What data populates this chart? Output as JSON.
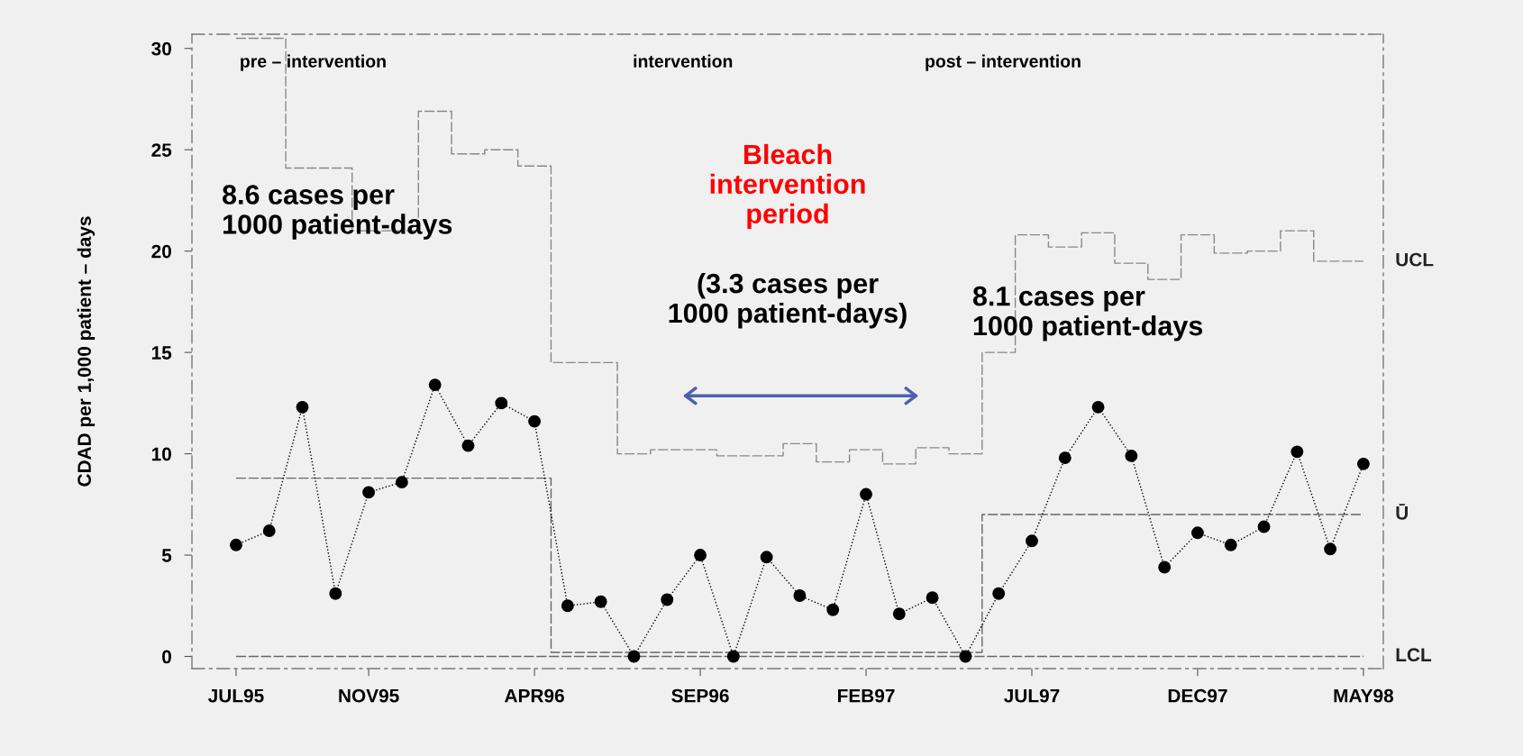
{
  "chart_data": {
    "type": "line",
    "ylabel": "CDAD per 1,000 patient – days",
    "categories": [
      "JUL95",
      null,
      null,
      null,
      "NOV95",
      null,
      null,
      null,
      null,
      "APR96",
      null,
      null,
      null,
      null,
      "SEP96",
      null,
      null,
      null,
      null,
      "FEB97",
      null,
      null,
      null,
      null,
      "JUL97",
      null,
      null,
      null,
      null,
      "DEC97",
      null,
      null,
      null,
      null,
      "MAY98"
    ],
    "ylim": [
      -0.6,
      30.7
    ],
    "yticks": [
      0,
      5,
      10,
      15,
      20,
      25,
      30
    ],
    "series": [
      {
        "color": "#000000",
        "marker": "circle",
        "line_style": "dotted",
        "values": [
          5.5,
          6.2,
          12.3,
          3.1,
          8.1,
          8.6,
          13.4,
          10.4,
          12.5,
          11.6,
          2.5,
          2.7,
          0,
          2.8,
          5.0,
          0,
          4.9,
          3.0,
          2.3,
          8.0,
          2.1,
          2.9,
          0,
          3.1,
          5.7,
          9.8,
          12.3,
          9.9,
          4.4,
          6.1,
          5.5,
          6.4,
          10.1,
          5.3,
          9.5
        ]
      },
      {
        "type": "step",
        "name": "UCL",
        "color": "#888888",
        "line_style": "dashed",
        "values": [
          30.5,
          30.5,
          24.1,
          24.1,
          21.0,
          21.0,
          26.9,
          24.8,
          25.0,
          24.2,
          14.5,
          14.5,
          10.0,
          10.2,
          10.2,
          9.9,
          9.9,
          10.5,
          9.6,
          10.2,
          9.5,
          10.3,
          10.0,
          15.0,
          20.8,
          20.2,
          20.9,
          19.4,
          18.6,
          20.8,
          19.9,
          20.0,
          21.0,
          19.5,
          19.5
        ]
      },
      {
        "type": "step",
        "name": "Ū",
        "color": "#666666",
        "line_style": "dashed",
        "values": [
          8.8,
          8.8,
          8.8,
          8.8,
          8.8,
          8.8,
          8.8,
          8.8,
          8.8,
          8.8,
          0.2,
          0.2,
          0.2,
          0.2,
          0.2,
          0.2,
          0.2,
          0.2,
          0.2,
          0.2,
          0.2,
          0.2,
          0.2,
          7.0,
          7.0,
          7.0,
          7.0,
          7.0,
          7.0,
          7.0,
          7.0,
          7.0,
          7.0,
          7.0,
          7.0
        ]
      },
      {
        "type": "step",
        "name": "LCL",
        "color": "#666666",
        "line_style": "dashed",
        "values": [
          0,
          0,
          0,
          0,
          0,
          0,
          0,
          0,
          0,
          0,
          0,
          0,
          0,
          0,
          0,
          0,
          0,
          0,
          0,
          0,
          0,
          0,
          0,
          0,
          0,
          0,
          0,
          0,
          0,
          0,
          0,
          0,
          0,
          0,
          0
        ]
      }
    ],
    "annotations": [
      "pre – intervention",
      "intervention",
      "post – intervention",
      "8.6 cases per\n1000 patient-days",
      "Bleach\nintervention\nperiod",
      "(3.3 cases per\n1000 patient-days)",
      "8.1 cases per\n1000 patient-days"
    ]
  }
}
